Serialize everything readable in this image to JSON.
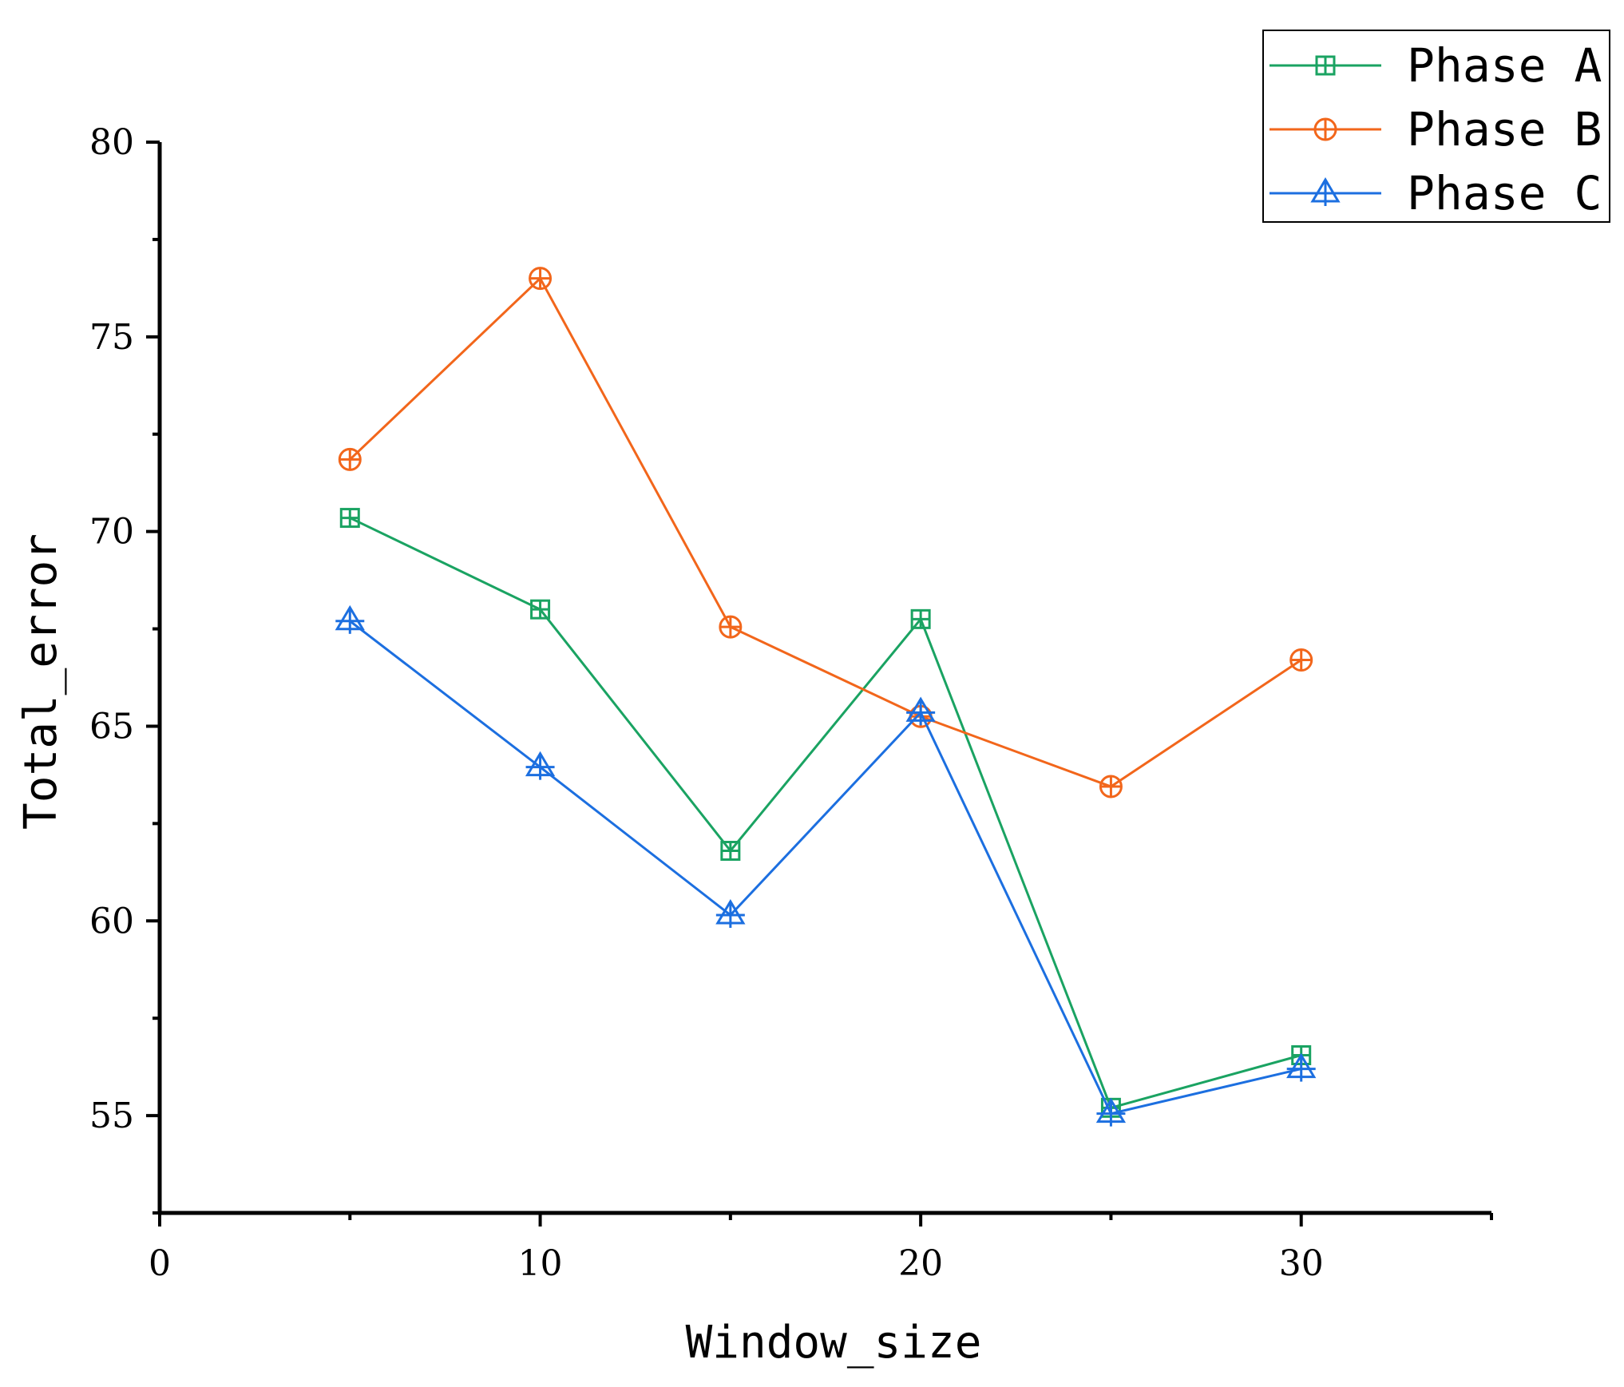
{
  "chart_data": {
    "type": "line",
    "title": "",
    "xlabel": "Window_size",
    "ylabel": "Total_error",
    "xlim": [
      0,
      35
    ],
    "ylim": [
      52.5,
      80
    ],
    "xticks": [
      0,
      10,
      20,
      30
    ],
    "yticks": [
      55,
      60,
      65,
      70,
      75,
      80
    ],
    "grid": false,
    "legend_position": "top-right",
    "x": [
      5,
      10,
      15,
      20,
      25,
      30
    ],
    "series": [
      {
        "name": "Phase A",
        "color": "#1aa362",
        "marker": "square-plus",
        "values": [
          70.35,
          68.0,
          61.8,
          67.75,
          55.2,
          56.55
        ]
      },
      {
        "name": "Phase B",
        "color": "#f2661b",
        "marker": "circle-plus",
        "values": [
          71.85,
          76.5,
          67.55,
          65.25,
          63.45,
          66.7
        ]
      },
      {
        "name": "Phase C",
        "color": "#1c6fe0",
        "marker": "triangle-plus",
        "values": [
          67.7,
          63.95,
          60.15,
          65.35,
          55.05,
          56.2
        ]
      }
    ]
  }
}
